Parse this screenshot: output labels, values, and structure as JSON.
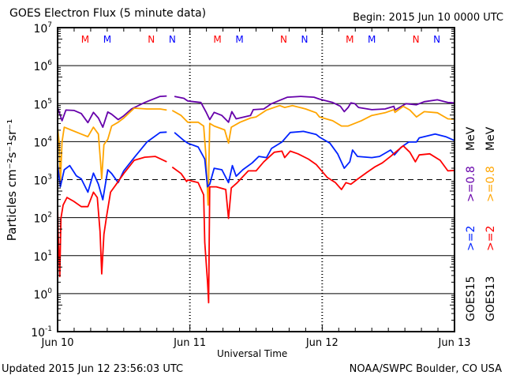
{
  "header": {
    "title": "GOES Electron Flux (5 minute data)",
    "begin": "Begin: 2015 Jun 10 0000 UTC"
  },
  "footer": {
    "updated": "Updated 2015 Jun 12 23:56:03 UTC",
    "source": "NOAA/SWPC Boulder, CO USA"
  },
  "chart_data": {
    "type": "line",
    "title": "GOES Electron Flux (5 minute data)",
    "xlabel": "Universal Time",
    "ylabel": "Particles cm⁻²s⁻¹sr⁻¹",
    "x_unit": "hours since 2015 Jun 10 0000 UTC",
    "xlim": [
      0,
      72
    ],
    "xticks": [
      {
        "h": 0,
        "label": "Jun 10"
      },
      {
        "h": 24,
        "label": "Jun 11"
      },
      {
        "h": 48,
        "label": "Jun 12"
      },
      {
        "h": 72,
        "label": "Jun 13"
      }
    ],
    "y_scale": "log10",
    "ylim_log10": [
      -1,
      7
    ],
    "yticks_exponents": [
      7,
      6,
      5,
      4,
      3,
      2,
      1,
      0,
      -1
    ],
    "ytick_base": "10",
    "threshold_log10": 3,
    "grid": true,
    "markers": [
      {
        "h": 5.0,
        "label": "M",
        "color": "#ff0000"
      },
      {
        "h": 9.0,
        "label": "M",
        "color": "#0000ff"
      },
      {
        "h": 17.0,
        "label": "N",
        "color": "#ff0000"
      },
      {
        "h": 20.8,
        "label": "N",
        "color": "#0000ff"
      },
      {
        "h": 29.0,
        "label": "M",
        "color": "#ff0000"
      },
      {
        "h": 33.0,
        "label": "M",
        "color": "#0000ff"
      },
      {
        "h": 41.0,
        "label": "N",
        "color": "#ff0000"
      },
      {
        "h": 44.8,
        "label": "N",
        "color": "#0000ff"
      },
      {
        "h": 53.0,
        "label": "M",
        "color": "#ff0000"
      },
      {
        "h": 57.0,
        "label": "M",
        "color": "#0000ff"
      },
      {
        "h": 65.0,
        "label": "N",
        "color": "#ff0000"
      },
      {
        "h": 68.8,
        "label": "N",
        "color": "#0000ff"
      }
    ],
    "legend": [
      {
        "column": "GOES15",
        "items": [
          {
            "label": ">=2",
            "color": "#0022ff"
          },
          {
            "label": ">=0.8",
            "color": "#6600aa"
          }
        ],
        "unit": "MeV"
      },
      {
        "column": "GOES13",
        "items": [
          {
            "label": ">=2",
            "color": "#ff0000"
          },
          {
            "label": ">=0.8",
            "color": "#ffa500"
          }
        ],
        "unit": "MeV"
      }
    ],
    "series": [
      {
        "name": "GOES15 >=0.8 MeV",
        "color": "#6600aa",
        "points": [
          [
            0,
            4.9
          ],
          [
            0.8,
            4.55
          ],
          [
            1.5,
            4.83
          ],
          [
            3,
            4.82
          ],
          [
            4.3,
            4.74
          ],
          [
            5.5,
            4.5
          ],
          [
            6.5,
            4.77
          ],
          [
            7.4,
            4.62
          ],
          [
            8.2,
            4.38
          ],
          [
            9.1,
            4.78
          ],
          [
            9.8,
            4.72
          ],
          [
            11,
            4.58
          ],
          [
            12,
            4.68
          ],
          [
            13.4,
            4.86
          ],
          [
            15.8,
            5.03
          ],
          [
            18.6,
            5.19
          ],
          [
            19.8,
            5.2
          ],
          null,
          [
            21.2,
            5.19
          ],
          [
            22.9,
            5.14
          ],
          [
            23.6,
            5.07
          ],
          [
            26,
            5.03
          ],
          [
            26.9,
            4.79
          ],
          [
            27.6,
            4.58
          ],
          [
            28.4,
            4.77
          ],
          [
            29.8,
            4.69
          ],
          [
            31,
            4.51
          ],
          [
            31.6,
            4.79
          ],
          [
            32.4,
            4.6
          ],
          [
            35,
            4.69
          ],
          [
            35.5,
            4.84
          ],
          [
            37.4,
            4.86
          ],
          [
            38.8,
            5.0
          ],
          [
            41.7,
            5.17
          ],
          [
            44.1,
            5.19
          ],
          [
            46.5,
            5.17
          ],
          [
            47.5,
            5.12
          ],
          [
            49.9,
            5.03
          ],
          [
            51.3,
            4.93
          ],
          [
            52,
            4.79
          ],
          [
            52.7,
            4.9
          ],
          [
            53.2,
            5.02
          ],
          [
            53.9,
            5.0
          ],
          [
            54.6,
            4.9
          ],
          [
            57,
            4.84
          ],
          [
            59.4,
            4.86
          ],
          [
            61,
            4.93
          ],
          [
            61.2,
            4.83
          ],
          [
            63.2,
            5.0
          ],
          [
            65.1,
            4.97
          ],
          [
            66.5,
            5.05
          ],
          [
            68.9,
            5.1
          ],
          [
            70.8,
            5.03
          ],
          [
            72,
            5.02
          ]
        ]
      },
      {
        "name": "GOES13 >=0.8 MeV",
        "color": "#ffa500",
        "points": [
          [
            0,
            4.38
          ],
          [
            0.3,
            3.96
          ],
          [
            0.5,
            2.88
          ],
          [
            0.8,
            3.99
          ],
          [
            1.2,
            4.38
          ],
          [
            2.4,
            4.31
          ],
          [
            4.3,
            4.2
          ],
          [
            5.5,
            4.13
          ],
          [
            6.5,
            4.38
          ],
          [
            7.4,
            4.2
          ],
          [
            7.8,
            3.44
          ],
          [
            8,
            3.02
          ],
          [
            8.4,
            3.92
          ],
          [
            9.1,
            4.06
          ],
          [
            9.8,
            4.41
          ],
          [
            11,
            4.51
          ],
          [
            12,
            4.62
          ],
          [
            13.9,
            4.88
          ],
          [
            16.2,
            4.86
          ],
          [
            18.6,
            4.86
          ],
          [
            19.8,
            4.83
          ],
          null,
          [
            20.8,
            4.82
          ],
          [
            22.4,
            4.69
          ],
          [
            23.6,
            4.51
          ],
          [
            25.5,
            4.51
          ],
          [
            26.5,
            4.41
          ],
          [
            26.9,
            3.65
          ],
          [
            27.3,
            2.33
          ],
          [
            27.6,
            4.48
          ],
          [
            28.4,
            4.41
          ],
          [
            30.3,
            4.31
          ],
          [
            31,
            3.96
          ],
          [
            31.5,
            4.38
          ],
          [
            33.1,
            4.51
          ],
          [
            35,
            4.62
          ],
          [
            36,
            4.65
          ],
          [
            37.9,
            4.83
          ],
          [
            40.3,
            4.95
          ],
          [
            41.2,
            4.9
          ],
          [
            42.6,
            4.95
          ],
          [
            45,
            4.86
          ],
          [
            46.9,
            4.76
          ],
          [
            47.5,
            4.65
          ],
          [
            49.9,
            4.55
          ],
          [
            51.5,
            4.41
          ],
          [
            52.7,
            4.41
          ],
          [
            53.7,
            4.47
          ],
          [
            55.1,
            4.55
          ],
          [
            57,
            4.69
          ],
          [
            59.4,
            4.76
          ],
          [
            61,
            4.84
          ],
          [
            61.2,
            4.77
          ],
          [
            62.7,
            4.93
          ],
          [
            63.9,
            4.83
          ],
          [
            65.1,
            4.65
          ],
          [
            66.5,
            4.79
          ],
          [
            68.9,
            4.76
          ],
          [
            70.8,
            4.6
          ],
          [
            72,
            4.59
          ]
        ]
      },
      {
        "name": "GOES15 >=2 MeV",
        "color": "#0022ff",
        "points": [
          [
            0,
            3.4
          ],
          [
            0.5,
            2.81
          ],
          [
            1.2,
            3.26
          ],
          [
            2.2,
            3.37
          ],
          [
            3.4,
            3.1
          ],
          [
            4.3,
            3.02
          ],
          [
            5.5,
            2.67
          ],
          [
            6.5,
            3.17
          ],
          [
            7.4,
            2.88
          ],
          [
            8.2,
            2.47
          ],
          [
            9.1,
            3.26
          ],
          [
            9.8,
            3.16
          ],
          [
            11,
            2.92
          ],
          [
            12,
            3.23
          ],
          [
            13.9,
            3.58
          ],
          [
            16.2,
            3.99
          ],
          [
            18.6,
            4.24
          ],
          [
            19.8,
            4.25
          ],
          null,
          [
            21.2,
            4.24
          ],
          [
            22.9,
            4.03
          ],
          [
            23.6,
            3.96
          ],
          [
            25.5,
            3.86
          ],
          [
            26.7,
            3.54
          ],
          [
            27.2,
            2.81
          ],
          [
            27.6,
            2.88
          ],
          [
            28.4,
            3.3
          ],
          [
            29.8,
            3.26
          ],
          [
            31,
            2.92
          ],
          [
            31.7,
            3.37
          ],
          [
            32.4,
            3.09
          ],
          [
            33.6,
            3.26
          ],
          [
            35.3,
            3.44
          ],
          [
            36.5,
            3.61
          ],
          [
            37.9,
            3.58
          ],
          [
            38.8,
            3.82
          ],
          [
            40.7,
            3.99
          ],
          [
            42.2,
            4.24
          ],
          [
            44.6,
            4.27
          ],
          [
            46.9,
            4.19
          ],
          [
            47.5,
            4.12
          ],
          [
            49.4,
            3.96
          ],
          [
            50.8,
            3.68
          ],
          [
            52,
            3.3
          ],
          [
            53,
            3.47
          ],
          [
            53.5,
            3.78
          ],
          [
            54.4,
            3.61
          ],
          [
            57,
            3.58
          ],
          [
            58.4,
            3.61
          ],
          [
            60.4,
            3.78
          ],
          [
            61.1,
            3.65
          ],
          [
            62.3,
            3.85
          ],
          [
            63.7,
            3.99
          ],
          [
            65.1,
            3.99
          ],
          [
            65.6,
            4.1
          ],
          [
            68.5,
            4.2
          ],
          [
            70.4,
            4.13
          ],
          [
            72,
            4.03
          ]
        ]
      },
      {
        "name": "GOES13 >=2 MeV",
        "color": "#ff0000",
        "points": [
          [
            0,
            2.33
          ],
          [
            0.1,
            1.63
          ],
          [
            0.4,
            0.45
          ],
          [
            0.6,
            1.98
          ],
          [
            1,
            2.33
          ],
          [
            1.7,
            2.53
          ],
          [
            2.9,
            2.43
          ],
          [
            4.3,
            2.29
          ],
          [
            5.5,
            2.29
          ],
          [
            6.5,
            2.67
          ],
          [
            7.2,
            2.53
          ],
          [
            7.7,
            1.63
          ],
          [
            8,
            0.52
          ],
          [
            8.4,
            1.56
          ],
          [
            8.9,
            2.05
          ],
          [
            9.6,
            2.67
          ],
          [
            10.5,
            2.85
          ],
          [
            12,
            3.16
          ],
          [
            13.9,
            3.51
          ],
          [
            15.8,
            3.59
          ],
          [
            17.7,
            3.61
          ],
          [
            19.8,
            3.47
          ],
          null,
          [
            20.8,
            3.33
          ],
          [
            22.4,
            3.16
          ],
          [
            23.4,
            2.95
          ],
          [
            23.6,
            2.99
          ],
          [
            25.5,
            2.92
          ],
          [
            26.5,
            2.6
          ],
          [
            26.7,
            1.35
          ],
          [
            27.2,
            0.31
          ],
          [
            27.4,
            -0.24
          ],
          [
            27.6,
            2.81
          ],
          [
            28.8,
            2.81
          ],
          [
            30.5,
            2.74
          ],
          [
            31,
            1.98
          ],
          [
            31.5,
            2.78
          ],
          [
            32.6,
            2.92
          ],
          [
            34.6,
            3.23
          ],
          [
            36,
            3.23
          ],
          [
            37.4,
            3.47
          ],
          [
            39.3,
            3.72
          ],
          [
            40.7,
            3.75
          ],
          [
            41.2,
            3.58
          ],
          [
            42.2,
            3.75
          ],
          [
            43.6,
            3.68
          ],
          [
            45.5,
            3.54
          ],
          [
            46.9,
            3.4
          ],
          [
            47.5,
            3.3
          ],
          [
            48.9,
            3.06
          ],
          [
            50.4,
            2.92
          ],
          [
            51.5,
            2.74
          ],
          [
            52.3,
            2.92
          ],
          [
            53.2,
            2.88
          ],
          [
            54.2,
            2.99
          ],
          [
            56.1,
            3.19
          ],
          [
            57.5,
            3.33
          ],
          [
            58.9,
            3.44
          ],
          [
            60.4,
            3.61
          ],
          [
            61.3,
            3.72
          ],
          [
            62.7,
            3.89
          ],
          [
            63.9,
            3.72
          ],
          [
            64.9,
            3.47
          ],
          [
            65.6,
            3.65
          ],
          [
            67.5,
            3.68
          ],
          [
            69.4,
            3.51
          ],
          [
            70.8,
            3.23
          ],
          [
            72,
            3.24
          ]
        ]
      }
    ]
  }
}
